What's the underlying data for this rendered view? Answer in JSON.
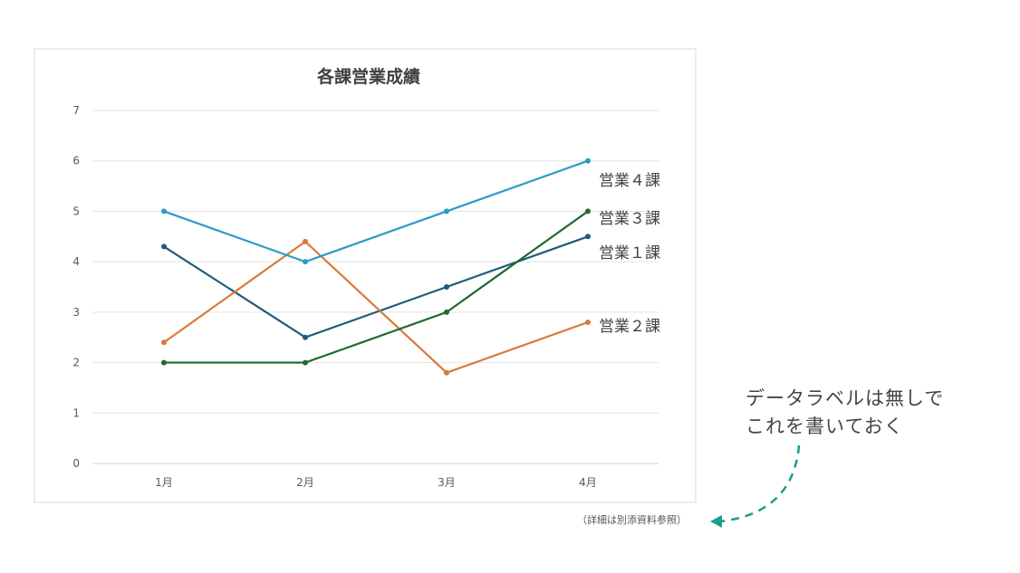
{
  "chart_data": {
    "type": "line",
    "title": "各課営業成績",
    "categories": [
      "1月",
      "2月",
      "3月",
      "4月"
    ],
    "ylim": [
      0,
      7
    ],
    "yticks": [
      "0",
      "1",
      "2",
      "3",
      "4",
      "5",
      "6",
      "7"
    ],
    "grid": true,
    "legend": "none (series labels at line ends)",
    "series": [
      {
        "name": "営業１課",
        "color": "#1f5a7a",
        "values": [
          4.3,
          2.5,
          3.5,
          4.5
        ]
      },
      {
        "name": "営業２課",
        "color": "#d9793a",
        "values": [
          2.4,
          4.4,
          1.8,
          2.8
        ]
      },
      {
        "name": "営業３課",
        "color": "#1e6a2c",
        "values": [
          2,
          2,
          3,
          5
        ]
      },
      {
        "name": "営業４課",
        "color": "#2b9ac6",
        "values": [
          5,
          4,
          5,
          6
        ]
      }
    ]
  },
  "annotation": {
    "lines": [
      "データラベルは無しで",
      "これを書いておく"
    ],
    "arrow_color": "#1a9e8c"
  },
  "footnote": "（詳細は別添資料参照）"
}
